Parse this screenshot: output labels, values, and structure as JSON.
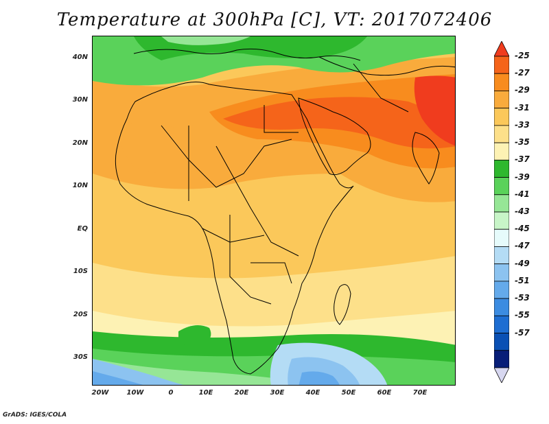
{
  "title": "Temperature at 300hPa [C], VT: 2017072406",
  "footer": "GrADS: IGES/COLA",
  "lat_labels": [
    "40N",
    "30N",
    "20N",
    "10N",
    "EQ",
    "10S",
    "20S",
    "30S"
  ],
  "lon_labels": [
    "20W",
    "10W",
    "0",
    "10E",
    "20E",
    "30E",
    "40E",
    "50E",
    "60E",
    "70E"
  ],
  "colorbar": {
    "labels": [
      "-25",
      "-27",
      "-29",
      "-31",
      "-33",
      "-35",
      "-37",
      "-39",
      "-41",
      "-43",
      "-45",
      "-47",
      "-49",
      "-51",
      "-53",
      "-55",
      "-57"
    ],
    "colors": [
      "#f03c1e",
      "#f5641a",
      "#f88c1e",
      "#f9ab3c",
      "#fbc85a",
      "#fde08a",
      "#fdf2b4",
      "#2eb82e",
      "#5ad25a",
      "#96e696",
      "#c8f5c8",
      "#e6fbfb",
      "#b4dcf5",
      "#8cc3f0",
      "#64aaeb",
      "#3c8ce1",
      "#1e6ed2",
      "#0a50b4",
      "#081e78",
      "#d7d7f0"
    ]
  },
  "colors": {
    "ocean_warm": "#fbc85a",
    "sahara_hot": "#f5641a",
    "arabia_hot": "#f03c1e",
    "mid_lat_green": "#2eb82e",
    "south_cold": "#3c8ce1",
    "border": "#000000"
  }
}
